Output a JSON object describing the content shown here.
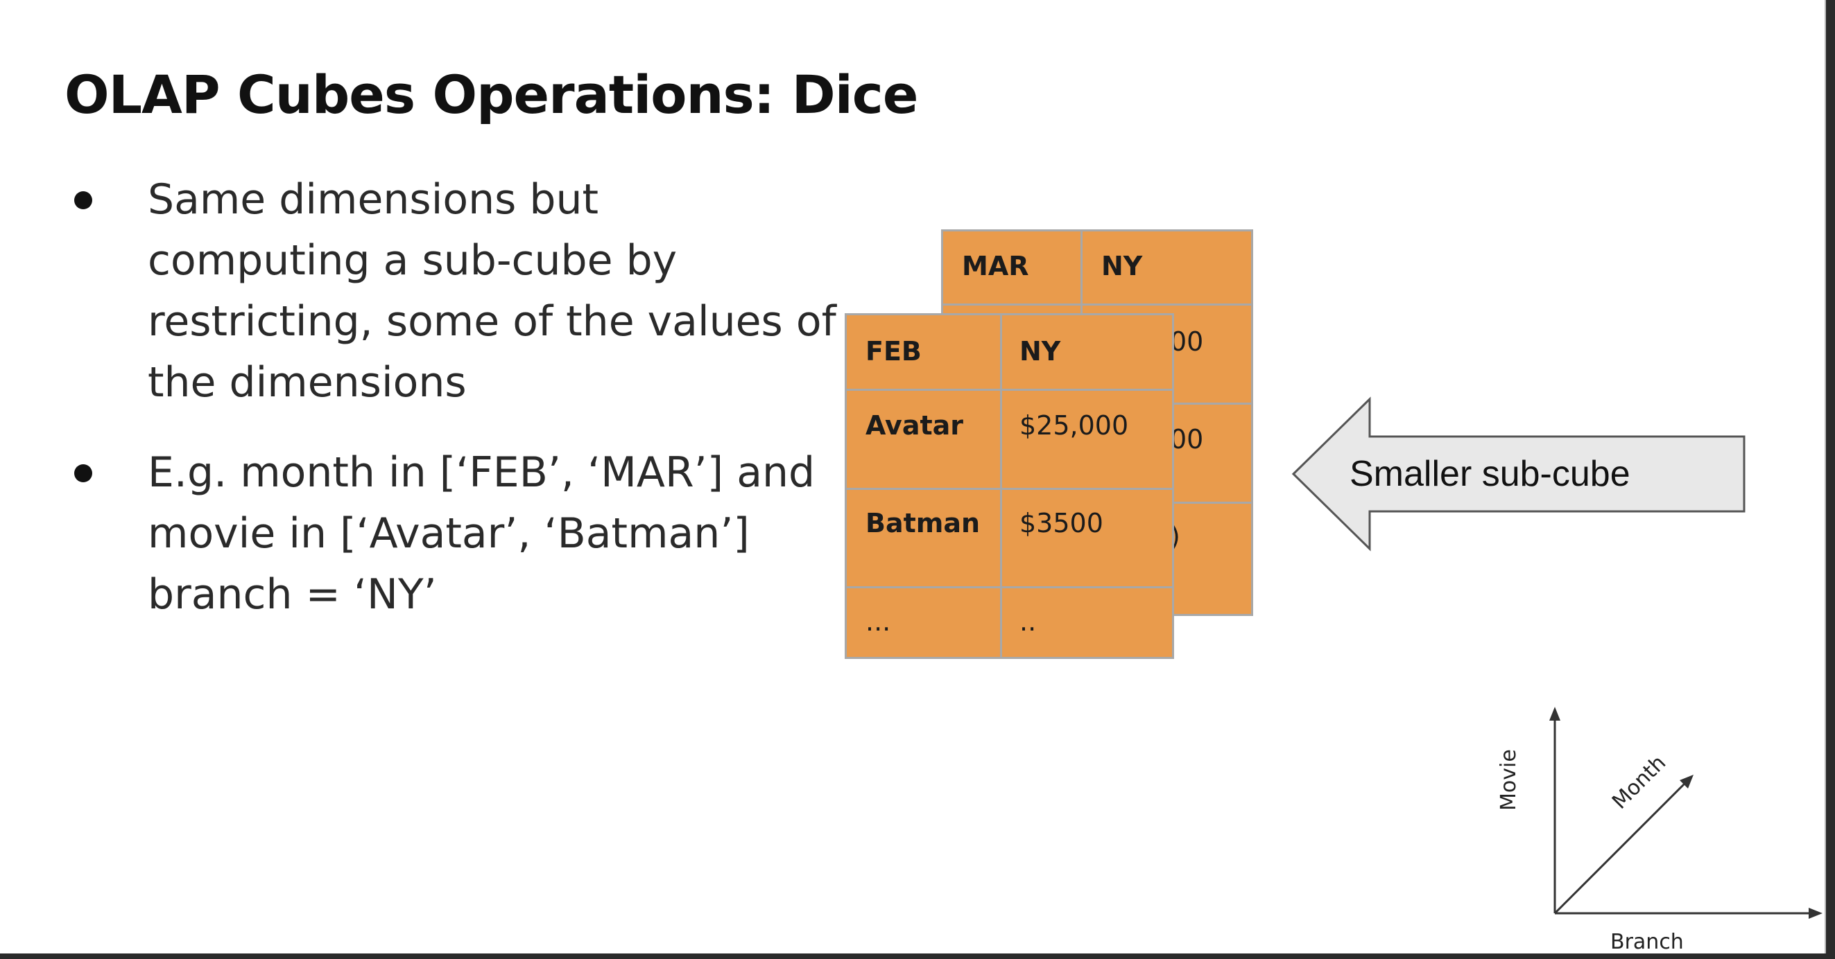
{
  "slide": {
    "title": "OLAP Cubes Operations: Dice",
    "bullets": [
      {
        "lines": [
          "Same dimensions but",
          "computing a sub-cube by",
          "restricting, some of the values of",
          "the dimensions"
        ]
      },
      {
        "lines": [
          "E.g. month in [‘FEB’, ‘MAR’] and",
          "movie in [‘Avatar’, ‘Batman’]",
          "branch = ‘NY’"
        ]
      }
    ]
  },
  "back_table": {
    "month": "MAR",
    "branch": "NY",
    "visible_fragments": [
      "00",
      "00",
      ")"
    ]
  },
  "front_table": {
    "month": "FEB",
    "branch": "NY",
    "rows": [
      {
        "movie": "Avatar",
        "value": "$25,000"
      },
      {
        "movie": "Batman",
        "value": "$3500"
      },
      {
        "movie": "...",
        "value": ".."
      }
    ]
  },
  "callout": {
    "label": "Smaller sub-cube"
  },
  "axes": {
    "vertical": "Movie",
    "diagonal": "Month",
    "horizontal": "Branch"
  },
  "colors": {
    "cube_fill": "#e99b4c",
    "cube_border": "#a8a8a8",
    "callout_fill": "#e8e8e8"
  }
}
